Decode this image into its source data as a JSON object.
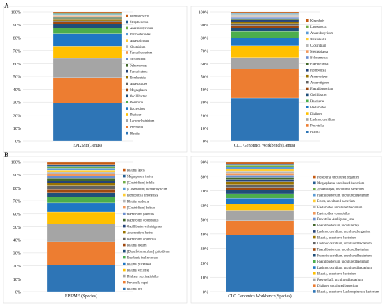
{
  "panels": [
    {
      "label": "A"
    },
    {
      "label": "B"
    }
  ],
  "chart_data": [
    {
      "type": "bar",
      "stacked": true,
      "category": "EPI2ME(Genus)",
      "yticks": [
        "0%",
        "10%",
        "20%",
        "30%",
        "40%",
        "50%",
        "60%",
        "70%",
        "80%",
        "90%",
        "100%"
      ],
      "ylim": [
        0,
        100
      ],
      "legend_position": "right",
      "series": [
        {
          "name": "Blautia",
          "value": 29.5,
          "color": "#2e75b6"
        },
        {
          "name": "Prevotella",
          "value": 19.5,
          "color": "#ed7d31"
        },
        {
          "name": "Lachnoclostridium",
          "value": 15.0,
          "color": "#a5a5a5"
        },
        {
          "name": "Dialister",
          "value": 9.5,
          "color": "#ffc000"
        },
        {
          "name": "Bacteroides",
          "value": 9.5,
          "color": "#1f77c4"
        },
        {
          "name": "Roseburia",
          "value": 4.5,
          "color": "#4cae4c"
        },
        {
          "name": "Oscillibacter",
          "value": 3.0,
          "color": "#1f4e79"
        },
        {
          "name": "Megasphaera",
          "value": 1.5,
          "color": "#9e480e"
        },
        {
          "name": "Anaerostipes",
          "value": 1.0,
          "color": "#636363"
        },
        {
          "name": "Romboutsia",
          "value": 1.0,
          "color": "#997300"
        },
        {
          "name": "Faecalicatena",
          "value": 0.8,
          "color": "#264478"
        },
        {
          "name": "Selenomonas",
          "value": 0.7,
          "color": "#43682b"
        },
        {
          "name": "Mitsuokella",
          "value": 0.6,
          "color": "#698ed0"
        },
        {
          "name": "Faecalibacterium",
          "value": 0.6,
          "color": "#f1975a"
        },
        {
          "name": "Clostridium",
          "value": 0.5,
          "color": "#b7b7b7"
        },
        {
          "name": "Anaerotignum",
          "value": 0.5,
          "color": "#ffcd33"
        },
        {
          "name": "Parabacteroides",
          "value": 0.5,
          "color": "#5b9bd5"
        },
        {
          "name": "Anaerobutyricum",
          "value": 0.5,
          "color": "#70ad47"
        },
        {
          "name": "Streptococcus",
          "value": 0.5,
          "color": "#255e91"
        },
        {
          "name": "Ruminococcus",
          "value": 0.8,
          "color": "#c55a11"
        }
      ]
    },
    {
      "type": "bar",
      "stacked": true,
      "category": "CLC Genomics Workbench(Genus)",
      "yticks": [
        "0%",
        "10%",
        "20%",
        "30%",
        "40%",
        "50%",
        "60%",
        "70%",
        "80%",
        "90%",
        "100%"
      ],
      "ylim": [
        0,
        100
      ],
      "legend_position": "right",
      "series": [
        {
          "name": "Blautia",
          "value": 33.0,
          "color": "#2e75b6"
        },
        {
          "name": "Prevotella",
          "value": 22.0,
          "color": "#ed7d31"
        },
        {
          "name": "Lachnoclostridium",
          "value": 9.0,
          "color": "#a5a5a5"
        },
        {
          "name": "Dialister",
          "value": 9.0,
          "color": "#ffc000"
        },
        {
          "name": "Bacteroides",
          "value": 6.0,
          "color": "#1f77c4"
        },
        {
          "name": "Roseburia",
          "value": 5.0,
          "color": "#4cae4c"
        },
        {
          "name": "Oscillibacter",
          "value": 2.5,
          "color": "#1f4e79"
        },
        {
          "name": "Faecalibacterium",
          "value": 2.0,
          "color": "#9e480e"
        },
        {
          "name": "Anaerotignum",
          "value": 1.5,
          "color": "#636363"
        },
        {
          "name": "Anaerostipes",
          "value": 1.5,
          "color": "#997300"
        },
        {
          "name": "Romboutsia",
          "value": 1.2,
          "color": "#264478"
        },
        {
          "name": "Faecalicatena",
          "value": 1.0,
          "color": "#43682b"
        },
        {
          "name": "Selenomonas",
          "value": 1.0,
          "color": "#698ed0"
        },
        {
          "name": "Megasphaera",
          "value": 0.8,
          "color": "#f1975a"
        },
        {
          "name": "Clostridium",
          "value": 0.8,
          "color": "#b7b7b7"
        },
        {
          "name": "Mitsuokella",
          "value": 0.8,
          "color": "#ffcd33"
        },
        {
          "name": "Anaerobutyricum",
          "value": 0.7,
          "color": "#5b9bd5"
        },
        {
          "name": "Lactococcus",
          "value": 0.6,
          "color": "#70ad47"
        },
        {
          "name": "Kineothrix",
          "value": 0.6,
          "color": "#c55a11"
        }
      ]
    },
    {
      "type": "bar",
      "stacked": true,
      "category": "EPI2ME (Species)",
      "yticks": [
        "0%",
        "10%",
        "20%",
        "30%",
        "40%",
        "50%",
        "60%",
        "70%",
        "80%",
        "90%",
        "100%"
      ],
      "ylim": [
        0,
        100
      ],
      "legend_position": "right",
      "series": [
        {
          "name": "Blautia luti",
          "value": 20.5,
          "color": "#2e75b6"
        },
        {
          "name": "Prevotella copri",
          "value": 18.0,
          "color": "#ed7d31"
        },
        {
          "name": "Dialister succinatiphilus",
          "value": 13.5,
          "color": "#a5a5a5"
        },
        {
          "name": "Blautia wexlerae",
          "value": 9.5,
          "color": "#ffc000"
        },
        {
          "name": "Blautia glucerasea",
          "value": 7.0,
          "color": "#1f77c4"
        },
        {
          "name": "Roseburia inulinivorans",
          "value": 4.5,
          "color": "#4cae4c"
        },
        {
          "name": "[Desulfotomaculum] guttoideum",
          "value": 3.0,
          "color": "#1f4e79"
        },
        {
          "name": "Blautia obeum",
          "value": 3.0,
          "color": "#9e480e"
        },
        {
          "name": "Bacteroides coprocola",
          "value": 2.5,
          "color": "#636363"
        },
        {
          "name": "Anaerostipes hadrus",
          "value": 2.0,
          "color": "#997300"
        },
        {
          "name": "Oscillibacter valericigenes",
          "value": 2.0,
          "color": "#264478"
        },
        {
          "name": "Bacteroides coprophilus",
          "value": 2.0,
          "color": "#43682b"
        },
        {
          "name": "Bacteroides plebeius",
          "value": 1.5,
          "color": "#698ed0"
        },
        {
          "name": "[Clostridium] bolteae",
          "value": 1.5,
          "color": "#f1975a"
        },
        {
          "name": "Blautia producta",
          "value": 1.5,
          "color": "#b7b7b7"
        },
        {
          "name": "Romboutsia timonensis",
          "value": 1.5,
          "color": "#ffcd33"
        },
        {
          "name": "[Clostridium] saccharolyticum",
          "value": 1.5,
          "color": "#5b9bd5"
        },
        {
          "name": "[Clostridium] indolis",
          "value": 1.5,
          "color": "#70ad47"
        },
        {
          "name": "Megasphaera indica",
          "value": 1.5,
          "color": "#255e91"
        },
        {
          "name": "Blautia faecis",
          "value": 2.0,
          "color": "#c55a11"
        }
      ]
    },
    {
      "type": "bar",
      "stacked": true,
      "category": "CLC Genomics Workbench(Species)",
      "yticks": [
        "0%",
        "10%",
        "20%",
        "30%",
        "40%",
        "50%",
        "60%",
        "70%",
        "80%",
        "90%"
      ],
      "ylim": [
        0,
        90
      ],
      "legend_position": "right",
      "series": [
        {
          "name": "Blautia, uncultured Lachnospiraceae bacterium",
          "value": 40.0,
          "color": "#2e75b6"
        },
        {
          "name": "Dialister, uncultured bacterium",
          "value": 10.0,
          "color": "#ed7d31"
        },
        {
          "name": "Prevotella 9, uncultured bacterium",
          "value": 7.0,
          "color": "#a5a5a5"
        },
        {
          "name": "Blautia, uncultured bacterium",
          "value": 5.0,
          "color": "#ffc000"
        },
        {
          "name": "Lachnoclostridium, uncultured bacterium",
          "value": 4.0,
          "color": "#1f77c4"
        },
        {
          "name": "Faecalibacterium, uncultured bacterium",
          "value": 3.0,
          "color": "#4cae4c"
        },
        {
          "name": "Ruminiclostridium, uncultured bacterium",
          "value": 2.5,
          "color": "#1f4e79"
        },
        {
          "name": "Faecalibacterium, uncultured bacterium",
          "value": 2.0,
          "color": "#9e480e"
        },
        {
          "name": "Lachnoclostridium, uncultured bacterium",
          "value": 2.0,
          "color": "#636363"
        },
        {
          "name": "Blautia, uncultured bacterium",
          "value": 2.0,
          "color": "#997300"
        },
        {
          "name": "Lachnoclostridium, uncultured organism",
          "value": 1.5,
          "color": "#264478"
        },
        {
          "name": "Faecalibacterium, uncultured sp.",
          "value": 1.5,
          "color": "#43682b"
        },
        {
          "name": "Prevotella, Ambiguous_taxa",
          "value": 1.5,
          "color": "#698ed0"
        },
        {
          "name": "Bacteroides, coprophilus",
          "value": 1.5,
          "color": "#f1975a"
        },
        {
          "name": "Bacteroides, uncultured bacterium",
          "value": 1.5,
          "color": "#b7b7b7"
        },
        {
          "name": "Dorea, uncultured bacterium",
          "value": 1.5,
          "color": "#ffcd33"
        },
        {
          "name": "Faecalibacterium, uncultured bacterium",
          "value": 1.5,
          "color": "#5b9bd5"
        },
        {
          "name": "Anaerostipes, uncultured bacterium",
          "value": 1.0,
          "color": "#70ad47"
        },
        {
          "name": "Megasphaera, uncultured bacterium",
          "value": 1.0,
          "color": "#255e91"
        },
        {
          "name": "Roseburia, uncultured organism",
          "value": 1.5,
          "color": "#c55a11"
        }
      ]
    }
  ]
}
